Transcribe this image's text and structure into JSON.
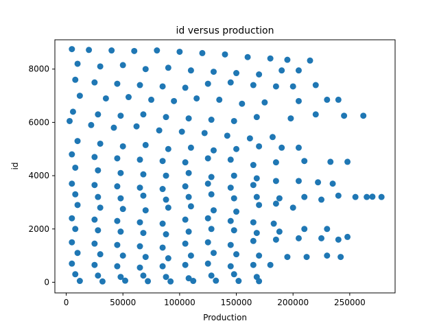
{
  "chart_data": {
    "type": "scatter",
    "title": "id versus production",
    "xlabel": "Production",
    "ylabel": "id",
    "xlim": [
      -10000,
      290000
    ],
    "ylim": [
      -400,
      9100
    ],
    "x_ticks": [
      0,
      50000,
      100000,
      150000,
      200000,
      250000
    ],
    "x_tick_labels": [
      "0",
      "50000",
      "100000",
      "150000",
      "200000",
      "250000"
    ],
    "y_ticks": [
      0,
      2000,
      4000,
      6000,
      8000
    ],
    "y_tick_labels": [
      "0",
      "2000",
      "4000",
      "6000",
      "8000"
    ],
    "grid": false,
    "marker_color": "#1f77b4",
    "series": [
      {
        "points": [
          [
            5000,
            8750
          ],
          [
            20000,
            8720
          ],
          [
            40000,
            8700
          ],
          [
            60000,
            8680
          ],
          [
            80000,
            8700
          ],
          [
            100000,
            8650
          ],
          [
            120000,
            8600
          ],
          [
            140000,
            8550
          ],
          [
            160000,
            8450
          ],
          [
            180000,
            8400
          ],
          [
            195000,
            8350
          ],
          [
            215000,
            8320
          ],
          [
            10000,
            8200
          ],
          [
            30000,
            8100
          ],
          [
            50000,
            8150
          ],
          [
            70000,
            8000
          ],
          [
            90000,
            8050
          ],
          [
            110000,
            7950
          ],
          [
            130000,
            7900
          ],
          [
            150000,
            7850
          ],
          [
            170000,
            7800
          ],
          [
            190000,
            7950
          ],
          [
            205000,
            7950
          ],
          [
            8000,
            7600
          ],
          [
            25000,
            7500
          ],
          [
            45000,
            7450
          ],
          [
            65000,
            7400
          ],
          [
            85000,
            7350
          ],
          [
            105000,
            7300
          ],
          [
            125000,
            7450
          ],
          [
            145000,
            7500
          ],
          [
            165000,
            7400
          ],
          [
            185000,
            7350
          ],
          [
            200000,
            7350
          ],
          [
            220000,
            7400
          ],
          [
            12000,
            7000
          ],
          [
            35000,
            6900
          ],
          [
            55000,
            6950
          ],
          [
            75000,
            6850
          ],
          [
            95000,
            6800
          ],
          [
            115000,
            6900
          ],
          [
            135000,
            6850
          ],
          [
            155000,
            6700
          ],
          [
            175000,
            6750
          ],
          [
            205000,
            6800
          ],
          [
            230000,
            6850
          ],
          [
            240000,
            6850
          ],
          [
            6000,
            6400
          ],
          [
            28000,
            6300
          ],
          [
            48000,
            6250
          ],
          [
            68000,
            6300
          ],
          [
            88000,
            6200
          ],
          [
            108000,
            6150
          ],
          [
            128000,
            6100
          ],
          [
            148000,
            6050
          ],
          [
            168000,
            6200
          ],
          [
            198000,
            6150
          ],
          [
            220000,
            6300
          ],
          [
            245000,
            6250
          ],
          [
            262000,
            6250
          ],
          [
            3000,
            6050
          ],
          [
            22000,
            5900
          ],
          [
            42000,
            5800
          ],
          [
            62000,
            5850
          ],
          [
            82000,
            5700
          ],
          [
            102000,
            5650
          ],
          [
            122000,
            5600
          ],
          [
            142000,
            5500
          ],
          [
            162000,
            5400
          ],
          [
            182000,
            5450
          ],
          [
            10000,
            5300
          ],
          [
            30000,
            5200
          ],
          [
            50000,
            5100
          ],
          [
            70000,
            5150
          ],
          [
            90000,
            5000
          ],
          [
            110000,
            5050
          ],
          [
            130000,
            4950
          ],
          [
            150000,
            5000
          ],
          [
            170000,
            5100
          ],
          [
            190000,
            5050
          ],
          [
            205000,
            5050
          ],
          [
            5000,
            4800
          ],
          [
            25000,
            4700
          ],
          [
            45000,
            4650
          ],
          [
            65000,
            4600
          ],
          [
            85000,
            4550
          ],
          [
            105000,
            4500
          ],
          [
            125000,
            4650
          ],
          [
            145000,
            4600
          ],
          [
            165000,
            4400
          ],
          [
            185000,
            4500
          ],
          [
            210000,
            4550
          ],
          [
            233000,
            4520
          ],
          [
            248000,
            4520
          ],
          [
            8000,
            4300
          ],
          [
            28000,
            4200
          ],
          [
            48000,
            4100
          ],
          [
            68000,
            4050
          ],
          [
            88000,
            4000
          ],
          [
            108000,
            4100
          ],
          [
            128000,
            3950
          ],
          [
            148000,
            4000
          ],
          [
            168000,
            3900
          ],
          [
            5000,
            3700
          ],
          [
            25000,
            3650
          ],
          [
            45000,
            3600
          ],
          [
            65000,
            3550
          ],
          [
            85000,
            3500
          ],
          [
            105000,
            3600
          ],
          [
            125000,
            3700
          ],
          [
            145000,
            3550
          ],
          [
            165000,
            3650
          ],
          [
            185000,
            3800
          ],
          [
            205000,
            3800
          ],
          [
            222000,
            3750
          ],
          [
            235000,
            3700
          ],
          [
            8000,
            3300
          ],
          [
            28000,
            3200
          ],
          [
            48000,
            3150
          ],
          [
            68000,
            3250
          ],
          [
            88000,
            3100
          ],
          [
            108000,
            3200
          ],
          [
            128000,
            3300
          ],
          [
            148000,
            3150
          ],
          [
            168000,
            3200
          ],
          [
            188000,
            3150
          ],
          [
            210000,
            3200
          ],
          [
            225000,
            3100
          ],
          [
            240000,
            3250
          ],
          [
            255000,
            3200
          ],
          [
            265000,
            3200
          ],
          [
            270000,
            3210
          ],
          [
            278000,
            3200
          ],
          [
            10000,
            2900
          ],
          [
            30000,
            2800
          ],
          [
            50000,
            2750
          ],
          [
            70000,
            2700
          ],
          [
            90000,
            2800
          ],
          [
            110000,
            2850
          ],
          [
            130000,
            2700
          ],
          [
            150000,
            2650
          ],
          [
            170000,
            2900
          ],
          [
            185000,
            2950
          ],
          [
            200000,
            2800
          ],
          [
            5000,
            2400
          ],
          [
            25000,
            2350
          ],
          [
            45000,
            2300
          ],
          [
            65000,
            2250
          ],
          [
            85000,
            2200
          ],
          [
            105000,
            2350
          ],
          [
            125000,
            2400
          ],
          [
            145000,
            2300
          ],
          [
            165000,
            2250
          ],
          [
            183000,
            2200
          ],
          [
            8000,
            2000
          ],
          [
            28000,
            1950
          ],
          [
            48000,
            1900
          ],
          [
            68000,
            1850
          ],
          [
            88000,
            1800
          ],
          [
            108000,
            1900
          ],
          [
            128000,
            2000
          ],
          [
            148000,
            1950
          ],
          [
            168000,
            1850
          ],
          [
            188000,
            1900
          ],
          [
            210000,
            2000
          ],
          [
            230000,
            2000
          ],
          [
            5000,
            1500
          ],
          [
            25000,
            1450
          ],
          [
            45000,
            1400
          ],
          [
            65000,
            1350
          ],
          [
            85000,
            1300
          ],
          [
            105000,
            1450
          ],
          [
            125000,
            1500
          ],
          [
            145000,
            1400
          ],
          [
            165000,
            1550
          ],
          [
            185000,
            1600
          ],
          [
            205000,
            1650
          ],
          [
            225000,
            1650
          ],
          [
            240000,
            1600
          ],
          [
            248000,
            1700
          ],
          [
            10000,
            1100
          ],
          [
            30000,
            1050
          ],
          [
            50000,
            1000
          ],
          [
            70000,
            950
          ],
          [
            90000,
            900
          ],
          [
            110000,
            1000
          ],
          [
            130000,
            1100
          ],
          [
            150000,
            1050
          ],
          [
            170000,
            1000
          ],
          [
            195000,
            950
          ],
          [
            212000,
            950
          ],
          [
            230000,
            1000
          ],
          [
            242000,
            950
          ],
          [
            5000,
            700
          ],
          [
            25000,
            650
          ],
          [
            45000,
            600
          ],
          [
            65000,
            550
          ],
          [
            85000,
            600
          ],
          [
            105000,
            650
          ],
          [
            125000,
            700
          ],
          [
            145000,
            600
          ],
          [
            165000,
            650
          ],
          [
            180000,
            650
          ],
          [
            8000,
            300
          ],
          [
            28000,
            250
          ],
          [
            48000,
            200
          ],
          [
            68000,
            250
          ],
          [
            88000,
            200
          ],
          [
            108000,
            150
          ],
          [
            128000,
            250
          ],
          [
            148000,
            300
          ],
          [
            168000,
            200
          ],
          [
            12000,
            50
          ],
          [
            32000,
            30
          ],
          [
            52000,
            60
          ],
          [
            72000,
            40
          ],
          [
            92000,
            30
          ],
          [
            112000,
            50
          ],
          [
            132000,
            60
          ],
          [
            152000,
            50
          ],
          [
            170000,
            40
          ]
        ]
      }
    ]
  }
}
